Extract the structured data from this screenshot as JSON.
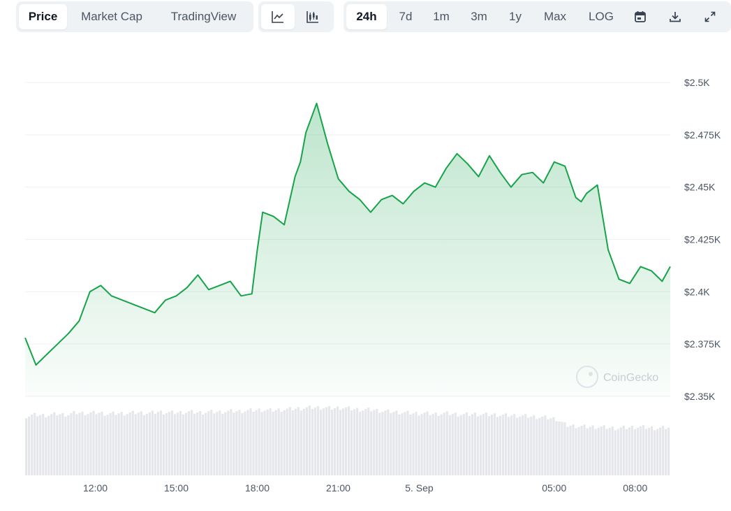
{
  "tabs": [
    {
      "label": "Price",
      "active": true
    },
    {
      "label": "Market Cap",
      "active": false
    },
    {
      "label": "TradingView",
      "active": false
    }
  ],
  "chart_modes": [
    {
      "icon": "line-chart-icon",
      "active": true
    },
    {
      "icon": "candlestick-chart-icon",
      "active": false
    }
  ],
  "ranges": [
    {
      "label": "24h",
      "active": true
    },
    {
      "label": "7d",
      "active": false
    },
    {
      "label": "1m",
      "active": false
    },
    {
      "label": "3m",
      "active": false
    },
    {
      "label": "1y",
      "active": false
    },
    {
      "label": "Max",
      "active": false
    },
    {
      "label": "LOG",
      "active": false
    }
  ],
  "tool_icons": [
    "calendar-icon",
    "download-icon",
    "expand-icon"
  ],
  "watermark": "CoinGecko",
  "colors": {
    "line": "#16a34a",
    "fill": "#16a34a",
    "volume": "#e5e7eb",
    "grid": "#eef0f3"
  },
  "chart_data": {
    "type": "area",
    "title": "",
    "xlabel": "",
    "ylabel": "",
    "grid": true,
    "ylim": [
      2350,
      2500
    ],
    "y_ticks": [
      2350,
      2375,
      2400,
      2425,
      2450,
      2475,
      2500
    ],
    "y_tick_labels": [
      "$2.35K",
      "$2.375K",
      "$2.4K",
      "$2.425K",
      "$2.45K",
      "$2.475K",
      "$2.5K"
    ],
    "x_ticks": [
      12,
      15,
      18,
      21,
      24,
      29,
      32
    ],
    "x_tick_labels": [
      "12:00",
      "15:00",
      "18:00",
      "21:00",
      "5. Sep",
      "05:00",
      "08:00"
    ],
    "xlim": [
      9.4,
      33.3
    ],
    "x": [
      9.4,
      9.8,
      10.2,
      10.6,
      11.0,
      11.4,
      11.8,
      12.2,
      12.6,
      13.0,
      13.4,
      13.8,
      14.2,
      14.6,
      15.0,
      15.4,
      15.8,
      16.2,
      16.6,
      17.0,
      17.4,
      17.8,
      18.0,
      18.2,
      18.6,
      19.0,
      19.4,
      19.6,
      19.8,
      20.2,
      20.6,
      21.0,
      21.4,
      21.8,
      22.2,
      22.6,
      23.0,
      23.4,
      23.8,
      24.2,
      24.6,
      25.0,
      25.4,
      25.8,
      26.2,
      26.6,
      27.0,
      27.4,
      27.8,
      28.2,
      28.6,
      29.0,
      29.4,
      29.8,
      30.0,
      30.2,
      30.6,
      31.0,
      31.4,
      31.8,
      32.2,
      32.6,
      33.0,
      33.3
    ],
    "values": [
      2378,
      2365,
      2370,
      2375,
      2380,
      2386,
      2400,
      2403,
      2398,
      2396,
      2394,
      2392,
      2390,
      2396,
      2398,
      2402,
      2408,
      2401,
      2403,
      2405,
      2398,
      2399,
      2420,
      2438,
      2436,
      2432,
      2455,
      2462,
      2476,
      2490,
      2471,
      2454,
      2448,
      2444,
      2438,
      2444,
      2446,
      2442,
      2448,
      2452,
      2450,
      2459,
      2466,
      2461,
      2455,
      2465,
      2457,
      2450,
      2456,
      2457,
      2452,
      2462,
      2460,
      2445,
      2443,
      2447,
      2451,
      2420,
      2406,
      2404,
      2412,
      2410,
      2405,
      2412
    ],
    "volume_relative": [
      0.83,
      0.85,
      0.84,
      0.86,
      0.85,
      0.88,
      0.87,
      0.88,
      0.86,
      0.87,
      0.87,
      0.88,
      0.87,
      0.89,
      0.88,
      0.88,
      0.89,
      0.88,
      0.89,
      0.89,
      0.9,
      0.9,
      0.91,
      0.92,
      0.91,
      0.92,
      0.93,
      0.94,
      0.95,
      0.95,
      0.94,
      0.95,
      0.93,
      0.92,
      0.92,
      0.9,
      0.89,
      0.88,
      0.87,
      0.87,
      0.86,
      0.87,
      0.86,
      0.85,
      0.86,
      0.85,
      0.85,
      0.84,
      0.84,
      0.83,
      0.82,
      0.81,
      0.79,
      0.7,
      0.69,
      0.68,
      0.68,
      0.67,
      0.66,
      0.67,
      0.68,
      0.67,
      0.66,
      0.67
    ]
  }
}
